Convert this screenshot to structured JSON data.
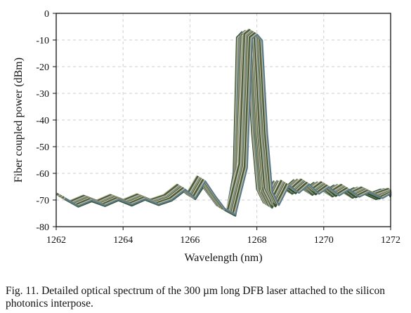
{
  "chart_data": {
    "type": "line",
    "xlabel": "Wavelength (nm)",
    "ylabel": "Fiber coupled power (dBm)",
    "xlim": [
      1262,
      1272
    ],
    "ylim": [
      -80,
      0
    ],
    "x_ticks": [
      "1262",
      "1264",
      "1266",
      "1268",
      "1270",
      "1272"
    ],
    "y_ticks": [
      "0",
      "-10",
      "-20",
      "-30",
      "-40",
      "-50",
      "-60",
      "-70",
      "-80"
    ],
    "grid": true,
    "series_colors": [
      "#2f4f2f",
      "#8a8a6a",
      "#c8c8b0",
      "#5a7a8a",
      "#b0a070",
      "#3a5a3a",
      "#d8d8c8",
      "#6a6a4a"
    ],
    "series": [
      {
        "values": [
          [
            1262,
            -67.8
          ],
          [
            1262.4,
            -70.6
          ],
          [
            1262.8,
            -68.6
          ],
          [
            1263.2,
            -70.4
          ],
          [
            1263.6,
            -68.2
          ],
          [
            1264.0,
            -70.2
          ],
          [
            1264.4,
            -68.0
          ],
          [
            1264.8,
            -70.0
          ],
          [
            1265.2,
            -68.3
          ],
          [
            1265.6,
            -64.5
          ],
          [
            1265.9,
            -67.8
          ],
          [
            1266.2,
            -62.0
          ],
          [
            1266.5,
            -67.0
          ],
          [
            1266.8,
            -72.0
          ],
          [
            1267.1,
            -74.0
          ],
          [
            1267.3,
            -60.0
          ],
          [
            1267.4,
            -9.0
          ],
          [
            1267.55,
            -7.0
          ],
          [
            1267.7,
            -9.5
          ],
          [
            1267.85,
            -45.0
          ],
          [
            1268.0,
            -66.0
          ],
          [
            1268.2,
            -71.0
          ],
          [
            1268.5,
            -63.0
          ],
          [
            1268.8,
            -65.8
          ],
          [
            1269.1,
            -62.5
          ],
          [
            1269.4,
            -66.2
          ],
          [
            1269.7,
            -63.5
          ],
          [
            1270.0,
            -66.8
          ],
          [
            1270.3,
            -64.5
          ],
          [
            1270.6,
            -67.3
          ],
          [
            1270.9,
            -65.5
          ],
          [
            1271.3,
            -67.8
          ],
          [
            1271.7,
            -66.0
          ],
          [
            1272,
            -67.0
          ]
        ]
      },
      {
        "values": [
          [
            1262,
            -67.6
          ],
          [
            1262.4,
            -70.5
          ],
          [
            1262.8,
            -68.4
          ],
          [
            1263.2,
            -70.3
          ],
          [
            1263.6,
            -68.1
          ],
          [
            1264.0,
            -70.0
          ],
          [
            1264.4,
            -67.9
          ],
          [
            1264.8,
            -69.9
          ],
          [
            1265.2,
            -68.2
          ],
          [
            1265.6,
            -64.3
          ],
          [
            1265.9,
            -67.6
          ],
          [
            1266.2,
            -61.5
          ],
          [
            1266.5,
            -66.8
          ],
          [
            1266.8,
            -71.8
          ],
          [
            1267.1,
            -73.8
          ],
          [
            1267.35,
            -58.0
          ],
          [
            1267.5,
            -8.0
          ],
          [
            1267.65,
            -6.5
          ],
          [
            1267.8,
            -8.8
          ],
          [
            1267.95,
            -44.0
          ],
          [
            1268.1,
            -65.5
          ],
          [
            1268.3,
            -70.5
          ],
          [
            1268.6,
            -62.8
          ],
          [
            1268.9,
            -65.6
          ],
          [
            1269.2,
            -62.3
          ],
          [
            1269.5,
            -66.0
          ],
          [
            1269.8,
            -63.3
          ],
          [
            1270.1,
            -66.6
          ],
          [
            1270.4,
            -64.3
          ],
          [
            1270.7,
            -67.1
          ],
          [
            1271.0,
            -65.3
          ],
          [
            1271.4,
            -67.6
          ],
          [
            1271.8,
            -65.8
          ],
          [
            1272,
            -66.7
          ]
        ]
      },
      {
        "values": [
          [
            1262,
            -67.4
          ],
          [
            1262.4,
            -70.3
          ],
          [
            1262.8,
            -68.2
          ],
          [
            1263.2,
            -70.1
          ],
          [
            1263.6,
            -67.9
          ],
          [
            1264.0,
            -69.8
          ],
          [
            1264.4,
            -67.7
          ],
          [
            1264.8,
            -69.7
          ],
          [
            1265.2,
            -68.0
          ],
          [
            1265.6,
            -64.1
          ],
          [
            1265.9,
            -67.4
          ],
          [
            1266.2,
            -61.0
          ],
          [
            1266.5,
            -66.6
          ],
          [
            1266.8,
            -71.6
          ],
          [
            1267.1,
            -73.6
          ],
          [
            1267.45,
            -56.0
          ],
          [
            1267.6,
            -7.5
          ],
          [
            1267.75,
            -6.0
          ],
          [
            1267.9,
            -8.2
          ],
          [
            1268.05,
            -43.0
          ],
          [
            1268.2,
            -65.0
          ],
          [
            1268.4,
            -70.0
          ],
          [
            1268.7,
            -62.6
          ],
          [
            1269.0,
            -65.4
          ],
          [
            1269.3,
            -62.1
          ],
          [
            1269.6,
            -65.8
          ],
          [
            1269.9,
            -63.1
          ],
          [
            1270.2,
            -66.4
          ],
          [
            1270.5,
            -64.1
          ],
          [
            1270.8,
            -66.9
          ],
          [
            1271.1,
            -65.1
          ],
          [
            1271.5,
            -67.4
          ],
          [
            1271.9,
            -65.6
          ],
          [
            1272,
            -66.5
          ]
        ]
      }
    ]
  },
  "caption": {
    "text": "Fig. 11.    Detailed optical spectrum of the 300 µm long DFB laser attached to the silicon photonics interpose."
  }
}
